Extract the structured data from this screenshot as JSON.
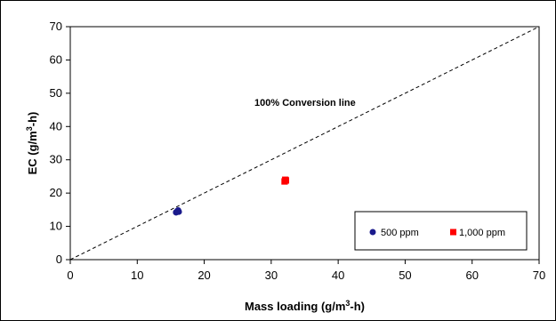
{
  "chart_data": {
    "type": "scatter",
    "xlabel": "Mass loading (g/m3-h)",
    "ylabel": "EC (g/m3-h)",
    "xlim": [
      0,
      70
    ],
    "ylim": [
      0,
      70
    ],
    "x_ticks": [
      "0",
      "10",
      "20",
      "30",
      "40",
      "50",
      "60",
      "70"
    ],
    "y_ticks": [
      "0",
      "10",
      "20",
      "30",
      "40",
      "50",
      "60",
      "70"
    ],
    "grid": false,
    "legend_position": "bottom-right",
    "annotation": "100% Conversion line",
    "reference_line": {
      "label": "100% Conversion line",
      "slope": 1,
      "intercept": 0,
      "style": "dashed"
    },
    "series": [
      {
        "name": "500 ppm",
        "marker": "circle",
        "color": "#1a1a8c",
        "points": [
          [
            15.8,
            14.2
          ],
          [
            16.0,
            14.6
          ],
          [
            16.2,
            14.4
          ],
          [
            16.1,
            14.8
          ]
        ]
      },
      {
        "name": "1,000 ppm",
        "marker": "square",
        "color": "#ff0000",
        "points": [
          [
            32.0,
            23.5
          ],
          [
            32.1,
            24.0
          ],
          [
            32.2,
            23.8
          ]
        ]
      }
    ]
  }
}
